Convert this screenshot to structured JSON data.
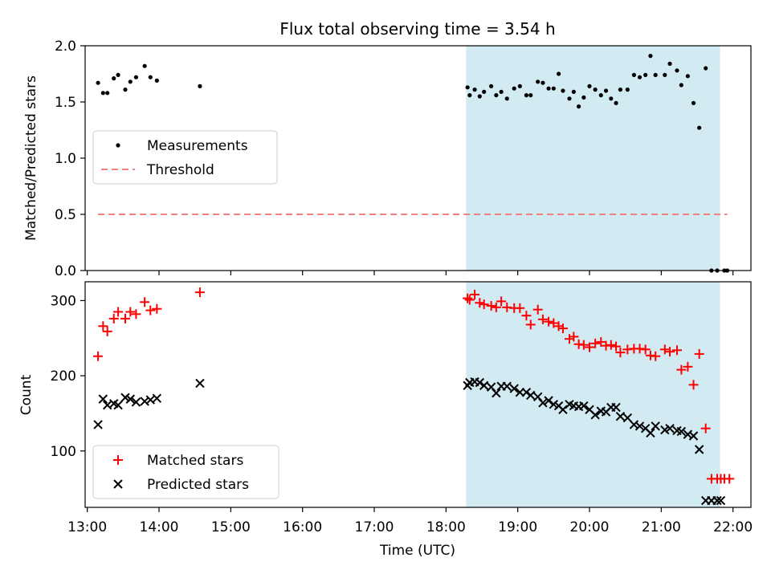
{
  "chart_data": [
    {
      "type": "scatter",
      "title": "Flux total observing time = 3.54 h",
      "xlabel": "",
      "ylabel": "Matched/Predicted stars",
      "xlim": [
        12.97,
        22.25
      ],
      "ylim": [
        0.0,
        2.0
      ],
      "yticks": [
        0.0,
        0.5,
        1.0,
        1.5,
        2.0
      ],
      "ytick_labels": [
        "0.0",
        "0.5",
        "1.0",
        "1.5",
        "2.0"
      ],
      "legend_position": "center-left",
      "legend": [
        "Measurements",
        "Threshold"
      ],
      "shaded_region": {
        "x_start": 18.28,
        "x_end": 21.82,
        "color": "#add8e6"
      },
      "threshold": {
        "name": "Threshold",
        "y": 0.5,
        "x_start": 13.15,
        "x_end": 21.92,
        "color": "#f08080"
      },
      "series": [
        {
          "name": "Measurements",
          "color": "#000000",
          "marker": "dot",
          "x": [
            13.15,
            13.22,
            13.28,
            13.37,
            13.43,
            13.53,
            13.6,
            13.68,
            13.8,
            13.88,
            13.97,
            14.57,
            18.3,
            18.33,
            18.4,
            18.47,
            18.53,
            18.63,
            18.7,
            18.77,
            18.85,
            18.95,
            19.03,
            19.12,
            19.18,
            19.28,
            19.35,
            19.43,
            19.5,
            19.57,
            19.63,
            19.72,
            19.78,
            19.85,
            19.92,
            20.0,
            20.08,
            20.16,
            20.23,
            20.3,
            20.37,
            20.43,
            20.53,
            20.62,
            20.7,
            20.78,
            20.85,
            20.92,
            21.05,
            21.12,
            21.22,
            21.28,
            21.37,
            21.45,
            21.53,
            21.62,
            21.7,
            21.78,
            21.88,
            21.92
          ],
          "y": [
            1.67,
            1.58,
            1.58,
            1.71,
            1.74,
            1.61,
            1.68,
            1.72,
            1.82,
            1.72,
            1.69,
            1.64,
            1.63,
            1.56,
            1.61,
            1.55,
            1.59,
            1.64,
            1.56,
            1.59,
            1.53,
            1.62,
            1.64,
            1.56,
            1.56,
            1.68,
            1.67,
            1.62,
            1.62,
            1.75,
            1.6,
            1.53,
            1.59,
            1.46,
            1.54,
            1.64,
            1.61,
            1.56,
            1.6,
            1.53,
            1.49,
            1.61,
            1.61,
            1.74,
            1.72,
            1.74,
            1.91,
            1.74,
            1.74,
            1.84,
            1.78,
            1.65,
            1.73,
            1.49,
            1.27,
            1.8,
            0.0,
            0.0,
            0.0,
            0.0
          ]
        }
      ]
    },
    {
      "type": "scatter",
      "title": "",
      "xlabel": "Time (UTC)",
      "ylabel": "Count",
      "xlim": [
        12.97,
        22.25
      ],
      "ylim": [
        25,
        325
      ],
      "xticks": [
        13,
        14,
        15,
        16,
        17,
        18,
        19,
        20,
        21,
        22
      ],
      "xtick_labels": [
        "13:00",
        "14:00",
        "15:00",
        "16:00",
        "17:00",
        "18:00",
        "19:00",
        "20:00",
        "21:00",
        "22:00"
      ],
      "yticks": [
        100,
        200,
        300
      ],
      "ytick_labels": [
        "100",
        "200",
        "300"
      ],
      "legend_position": "lower-left",
      "legend": [
        "Matched stars",
        "Predicted stars"
      ],
      "shaded_region": {
        "x_start": 18.28,
        "x_end": 21.82,
        "color": "#add8e6"
      },
      "series": [
        {
          "name": "Matched stars",
          "color": "#ff0000",
          "marker": "plus",
          "x": [
            13.15,
            13.22,
            13.28,
            13.37,
            13.43,
            13.53,
            13.6,
            13.68,
            13.8,
            13.88,
            13.97,
            14.57,
            18.3,
            18.33,
            18.4,
            18.47,
            18.53,
            18.63,
            18.7,
            18.77,
            18.85,
            18.95,
            19.03,
            19.12,
            19.18,
            19.28,
            19.35,
            19.43,
            19.5,
            19.57,
            19.63,
            19.72,
            19.78,
            19.85,
            19.92,
            20.0,
            20.08,
            20.16,
            20.23,
            20.3,
            20.37,
            20.43,
            20.53,
            20.62,
            20.7,
            20.78,
            20.85,
            20.92,
            21.05,
            21.12,
            21.22,
            21.28,
            21.37,
            21.45,
            21.53,
            21.62,
            21.7,
            21.78,
            21.83,
            21.88,
            21.95
          ],
          "y": [
            226,
            266,
            259,
            276,
            285,
            276,
            285,
            282,
            298,
            287,
            289,
            311,
            303,
            301,
            308,
            297,
            295,
            293,
            291,
            299,
            291,
            290,
            290,
            280,
            268,
            288,
            275,
            272,
            270,
            266,
            263,
            249,
            252,
            242,
            241,
            238,
            243,
            245,
            240,
            241,
            239,
            231,
            235,
            236,
            236,
            235,
            227,
            226,
            235,
            232,
            234,
            208,
            212,
            188,
            229,
            130,
            63,
            63,
            63,
            63,
            63
          ]
        },
        {
          "name": "Predicted stars",
          "color": "#000000",
          "marker": "cross",
          "x": [
            13.15,
            13.22,
            13.28,
            13.37,
            13.43,
            13.53,
            13.6,
            13.68,
            13.8,
            13.88,
            13.97,
            14.57,
            18.3,
            18.33,
            18.4,
            18.47,
            18.53,
            18.63,
            18.7,
            18.77,
            18.85,
            18.95,
            19.03,
            19.12,
            19.18,
            19.28,
            19.35,
            19.43,
            19.5,
            19.57,
            19.63,
            19.72,
            19.78,
            19.85,
            19.92,
            20.0,
            20.08,
            20.16,
            20.23,
            20.3,
            20.37,
            20.43,
            20.53,
            20.62,
            20.7,
            20.78,
            20.85,
            20.92,
            21.05,
            21.12,
            21.22,
            21.28,
            21.37,
            21.45,
            21.53,
            21.62,
            21.7,
            21.78,
            21.83
          ],
          "y": [
            135,
            169,
            161,
            163,
            161,
            171,
            169,
            165,
            166,
            168,
            170,
            190,
            187,
            191,
            192,
            191,
            187,
            185,
            177,
            186,
            186,
            183,
            178,
            178,
            174,
            172,
            164,
            167,
            162,
            160,
            155,
            162,
            160,
            159,
            160,
            155,
            148,
            153,
            152,
            158,
            158,
            146,
            144,
            135,
            133,
            130,
            124,
            133,
            128,
            130,
            127,
            126,
            122,
            120,
            102,
            34,
            34,
            34,
            34
          ]
        }
      ]
    }
  ]
}
